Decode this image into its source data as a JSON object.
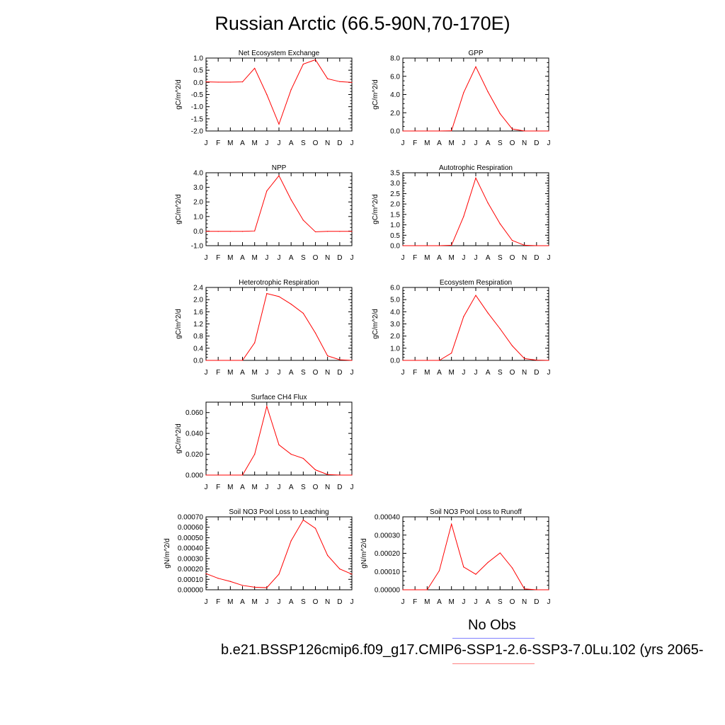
{
  "title": "Russian Arctic (66.5-90N,70-170E)",
  "legend": {
    "obs_label": "No Obs",
    "obs_color": "#8080ff",
    "model_label": "b.e21.BSSP126cmip6.f09_g17.CMIP6-SSP1-2.6-SSP3-7.0Lu.102 (yrs 2065-",
    "model_color": "#ff8080"
  },
  "colors": {
    "series": "#ff0000",
    "axis": "#000000"
  },
  "chart_data": [
    {
      "type": "line",
      "title": "Net Ecosystem Exchange",
      "ylabel": "gC/m^2/d",
      "x": [
        "J",
        "F",
        "M",
        "A",
        "M",
        "J",
        "J",
        "A",
        "S",
        "O",
        "N",
        "D",
        "J"
      ],
      "series": [
        {
          "values": [
            0.02,
            0.01,
            0.01,
            0.02,
            0.58,
            -0.5,
            -1.72,
            -0.3,
            0.75,
            0.93,
            0.15,
            0.03,
            0.0
          ]
        }
      ],
      "ylim": [
        -2.0,
        1.0
      ],
      "yticks": [
        1.0,
        0.5,
        0.0,
        -0.5,
        -1.0,
        -1.5,
        -2.0
      ],
      "ytick_labels": [
        "1.0",
        "0.5",
        "0.0",
        "-0.5",
        "-1.0",
        "-1.5",
        "-2.0"
      ]
    },
    {
      "type": "line",
      "title": "GPP",
      "ylabel": "gC/m^2/d",
      "x": [
        "J",
        "F",
        "M",
        "A",
        "M",
        "J",
        "J",
        "A",
        "S",
        "O",
        "N",
        "D",
        "J"
      ],
      "series": [
        {
          "values": [
            0,
            0,
            0,
            0,
            0.02,
            4.2,
            7.05,
            4.3,
            1.9,
            0.22,
            0.0,
            0,
            0
          ]
        }
      ],
      "ylim": [
        0,
        8.0
      ],
      "yticks": [
        8.0,
        6.0,
        4.0,
        2.0,
        0.0
      ],
      "ytick_labels": [
        "8.0",
        "6.0",
        "4.0",
        "2.0",
        "0.0"
      ]
    },
    {
      "type": "line",
      "title": "NPP",
      "ylabel": "gC/m^2/d",
      "x": [
        "J",
        "F",
        "M",
        "A",
        "M",
        "J",
        "J",
        "A",
        "S",
        "O",
        "N",
        "D",
        "J"
      ],
      "series": [
        {
          "values": [
            -0.02,
            -0.02,
            -0.02,
            -0.02,
            0.01,
            2.75,
            3.8,
            2.15,
            0.75,
            -0.05,
            -0.02,
            -0.02,
            -0.02
          ]
        }
      ],
      "ylim": [
        -1.0,
        4.0
      ],
      "yticks": [
        4.0,
        3.0,
        2.0,
        1.0,
        0.0,
        -1.0
      ],
      "ytick_labels": [
        "4.0",
        "3.0",
        "2.0",
        "1.0",
        "0.0",
        "-1.0"
      ]
    },
    {
      "type": "line",
      "title": "Autotrophic Respiration",
      "ylabel": "gC/m^2/d",
      "x": [
        "J",
        "F",
        "M",
        "A",
        "M",
        "J",
        "J",
        "A",
        "S",
        "O",
        "N",
        "D",
        "J"
      ],
      "series": [
        {
          "values": [
            0,
            0,
            0,
            0,
            0.02,
            1.4,
            3.25,
            2.05,
            1.05,
            0.25,
            0.02,
            0,
            0
          ]
        }
      ],
      "ylim": [
        0,
        3.5
      ],
      "yticks": [
        3.5,
        3.0,
        2.5,
        2.0,
        1.5,
        1.0,
        0.5,
        0.0
      ],
      "ytick_labels": [
        "3.5",
        "3.0",
        "2.5",
        "2.0",
        "1.5",
        "1.0",
        "0.5",
        "0.0"
      ]
    },
    {
      "type": "line",
      "title": "Heterotrophic Respiration",
      "ylabel": "gC/m^2/d",
      "x": [
        "J",
        "F",
        "M",
        "A",
        "M",
        "J",
        "J",
        "A",
        "S",
        "O",
        "N",
        "D",
        "J"
      ],
      "series": [
        {
          "values": [
            0,
            0,
            0,
            0,
            0.58,
            2.2,
            2.1,
            1.85,
            1.55,
            0.9,
            0.15,
            0.02,
            0.0
          ]
        }
      ],
      "ylim": [
        0,
        2.4
      ],
      "yticks": [
        2.4,
        2.0,
        1.6,
        1.2,
        0.8,
        0.4,
        0.0
      ],
      "ytick_labels": [
        "2.4",
        "2.0",
        "1.6",
        "1.2",
        "0.8",
        "0.4",
        "0.0"
      ]
    },
    {
      "type": "line",
      "title": "Ecosystem Respiration",
      "ylabel": "gC/m^2/d",
      "x": [
        "J",
        "F",
        "M",
        "A",
        "M",
        "J",
        "J",
        "A",
        "S",
        "O",
        "N",
        "D",
        "J"
      ],
      "series": [
        {
          "values": [
            0,
            0,
            0,
            0,
            0.6,
            3.6,
            5.35,
            3.9,
            2.6,
            1.2,
            0.15,
            0.02,
            0.0
          ]
        }
      ],
      "ylim": [
        0,
        6.0
      ],
      "yticks": [
        6.0,
        5.0,
        4.0,
        3.0,
        2.0,
        1.0,
        0.0
      ],
      "ytick_labels": [
        "6.0",
        "5.0",
        "4.0",
        "3.0",
        "2.0",
        "1.0",
        "0.0"
      ]
    },
    {
      "type": "line",
      "title": "Surface CH4 Flux",
      "ylabel": "gC/m^2/d",
      "x": [
        "J",
        "F",
        "M",
        "A",
        "M",
        "J",
        "J",
        "A",
        "S",
        "O",
        "N",
        "D",
        "J"
      ],
      "series": [
        {
          "values": [
            0,
            0,
            0,
            0,
            0.02,
            0.066,
            0.029,
            0.02,
            0.016,
            0.005,
            0.0005,
            0,
            0
          ]
        }
      ],
      "ylim": [
        0,
        0.07
      ],
      "yticks": [
        0.06,
        0.04,
        0.02,
        0.0
      ],
      "ytick_labels": [
        "0.060",
        "0.040",
        "0.020",
        "0.000"
      ]
    },
    {
      "type": "line",
      "title": "Soil NO3 Pool Loss to Leaching",
      "ylabel": "gN/m^2/d",
      "x": [
        "J",
        "F",
        "M",
        "A",
        "M",
        "J",
        "J",
        "A",
        "S",
        "O",
        "N",
        "D",
        "J"
      ],
      "series": [
        {
          "values": [
            0.000155,
            0.00011,
            8e-05,
            4.2e-05,
            2.5e-05,
            2e-05,
            0.00015,
            0.00047,
            0.00067,
            0.00059,
            0.00033,
            0.0002,
            0.00015
          ]
        }
      ],
      "ylim": [
        0,
        0.0007
      ],
      "yticks": [
        0.0007,
        0.0006,
        0.0005,
        0.0004,
        0.0003,
        0.0002,
        0.0001,
        0.0
      ],
      "ytick_labels": [
        "0.00070",
        "0.00060",
        "0.00050",
        "0.00040",
        "0.00030",
        "0.00020",
        "0.00010",
        "0.00000"
      ]
    },
    {
      "type": "line",
      "title": "Soil NO3 Pool Loss to Runoff",
      "ylabel": "gN/m^2/d",
      "x": [
        "J",
        "F",
        "M",
        "A",
        "M",
        "J",
        "J",
        "A",
        "S",
        "O",
        "N",
        "D",
        "J"
      ],
      "series": [
        {
          "values": [
            0,
            0,
            0,
            0.000105,
            0.00036,
            0.000125,
            8.5e-05,
            0.00015,
            0.000202,
            0.00012,
            5e-06,
            0,
            0
          ]
        }
      ],
      "ylim": [
        0,
        0.0004
      ],
      "yticks": [
        0.0004,
        0.0003,
        0.0002,
        0.0001,
        0.0
      ],
      "ytick_labels": [
        "0.00040",
        "0.00030",
        "0.00020",
        "0.00010",
        "0.00000"
      ]
    }
  ]
}
